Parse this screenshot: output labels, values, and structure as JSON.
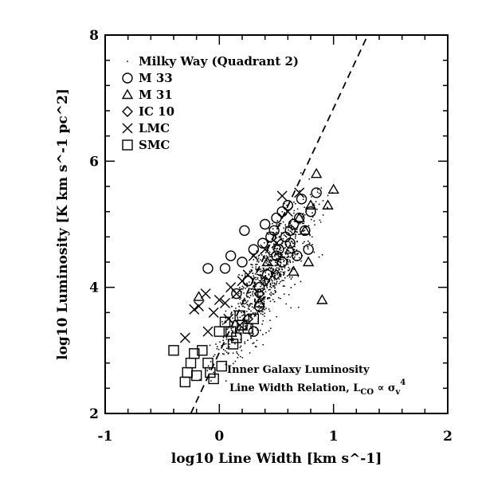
{
  "chart_data": {
    "type": "scatter",
    "xlabel": "log10 Line Width [km s^-1]",
    "ylabel": "log10 Luminosity [K km s^-1 pc^2]",
    "xlim": [
      -1,
      2
    ],
    "ylim": [
      2,
      8
    ],
    "x_ticks": [
      "-1",
      "0",
      "1",
      "2"
    ],
    "y_ticks": [
      "2",
      "4",
      "6",
      "8"
    ],
    "legend_location": "top-left",
    "legend": [
      {
        "marker": "dot",
        "label": "Milky Way (Quadrant 2)"
      },
      {
        "marker": "circle",
        "label": "M 33"
      },
      {
        "marker": "triangle",
        "label": "M 31"
      },
      {
        "marker": "diamond",
        "label": "IC 10"
      },
      {
        "marker": "cross",
        "label": "LMC"
      },
      {
        "marker": "square",
        "label": "SMC"
      }
    ],
    "annotation": {
      "line1": "Inner Galaxy Luminosity",
      "line2": "Line Width Relation, L",
      "sub": "CO",
      "mid": " ∝ σ",
      "sub2": "v",
      "sup": "4"
    },
    "fit_line": {
      "style": "dashed",
      "relation": "L_CO ∝ σ_v^4",
      "x": [
        -0.25,
        1.3
      ],
      "y": [
        2.0,
        8.0
      ]
    },
    "series": [
      {
        "name": "Milky Way (Quadrant 2)",
        "marker": "dot",
        "cloud": {
          "count": 900,
          "x_mean": 0.42,
          "x_sd": 0.2,
          "slope": 2.6,
          "intercept": 3.55,
          "y_scatter": 0.32
        }
      },
      {
        "name": "M 33",
        "marker": "circle",
        "x": [
          -0.1,
          0.05,
          0.1,
          0.2,
          0.22,
          0.3,
          0.35,
          0.38,
          0.4,
          0.45,
          0.48,
          0.5,
          0.52,
          0.55,
          0.58,
          0.6,
          0.62,
          0.65,
          0.7,
          0.72,
          0.75,
          0.78,
          0.8,
          0.85,
          0.15,
          0.25,
          0.42,
          0.5,
          0.55,
          0.62,
          0.68,
          0.3,
          0.35
        ],
        "y": [
          4.3,
          4.3,
          4.5,
          4.4,
          4.9,
          4.6,
          4.0,
          4.7,
          5.0,
          4.8,
          4.9,
          5.1,
          4.6,
          5.2,
          4.8,
          5.3,
          4.7,
          5.0,
          5.1,
          5.4,
          4.9,
          4.6,
          5.2,
          5.5,
          3.9,
          4.1,
          4.2,
          4.5,
          4.4,
          4.9,
          4.5,
          3.3,
          3.7
        ]
      },
      {
        "name": "M 31",
        "marker": "triangle",
        "x": [
          -0.18,
          0.35,
          0.42,
          0.62,
          0.65,
          0.7,
          0.78,
          0.8,
          0.85,
          0.9,
          0.95,
          1.0,
          0.75
        ],
        "y": [
          3.85,
          3.75,
          4.4,
          4.6,
          4.25,
          5.1,
          4.4,
          5.3,
          5.8,
          3.8,
          5.3,
          5.55,
          4.9
        ]
      },
      {
        "name": "IC 10",
        "marker": "diamond",
        "x": [
          0.25,
          0.35,
          0.4,
          0.5
        ],
        "y": [
          3.5,
          3.9,
          4.1,
          4.2
        ]
      },
      {
        "name": "LMC",
        "marker": "cross",
        "x": [
          -0.3,
          -0.22,
          -0.18,
          -0.12,
          -0.05,
          0.0,
          0.05,
          0.1,
          0.15,
          0.2,
          0.25,
          0.3,
          0.4,
          0.5,
          0.55,
          0.6,
          0.7,
          -0.1,
          0.08,
          0.18
        ],
        "y": [
          3.2,
          3.65,
          3.7,
          3.9,
          3.6,
          3.8,
          3.75,
          4.0,
          3.9,
          4.1,
          4.2,
          4.5,
          4.6,
          4.7,
          5.45,
          5.2,
          5.5,
          3.3,
          3.5,
          3.4
        ]
      },
      {
        "name": "SMC",
        "marker": "square",
        "x": [
          -0.4,
          -0.3,
          -0.25,
          -0.2,
          -0.15,
          -0.1,
          -0.05,
          0.0,
          0.05,
          0.1,
          0.15,
          0.2,
          0.25,
          0.3,
          -0.22,
          -0.08,
          0.12,
          0.18,
          0.02,
          -0.28
        ],
        "y": [
          3.0,
          2.5,
          2.8,
          2.6,
          3.0,
          2.8,
          2.55,
          3.3,
          3.45,
          3.3,
          3.2,
          3.4,
          3.35,
          3.5,
          2.95,
          2.65,
          3.1,
          3.55,
          2.75,
          2.65
        ]
      }
    ]
  }
}
